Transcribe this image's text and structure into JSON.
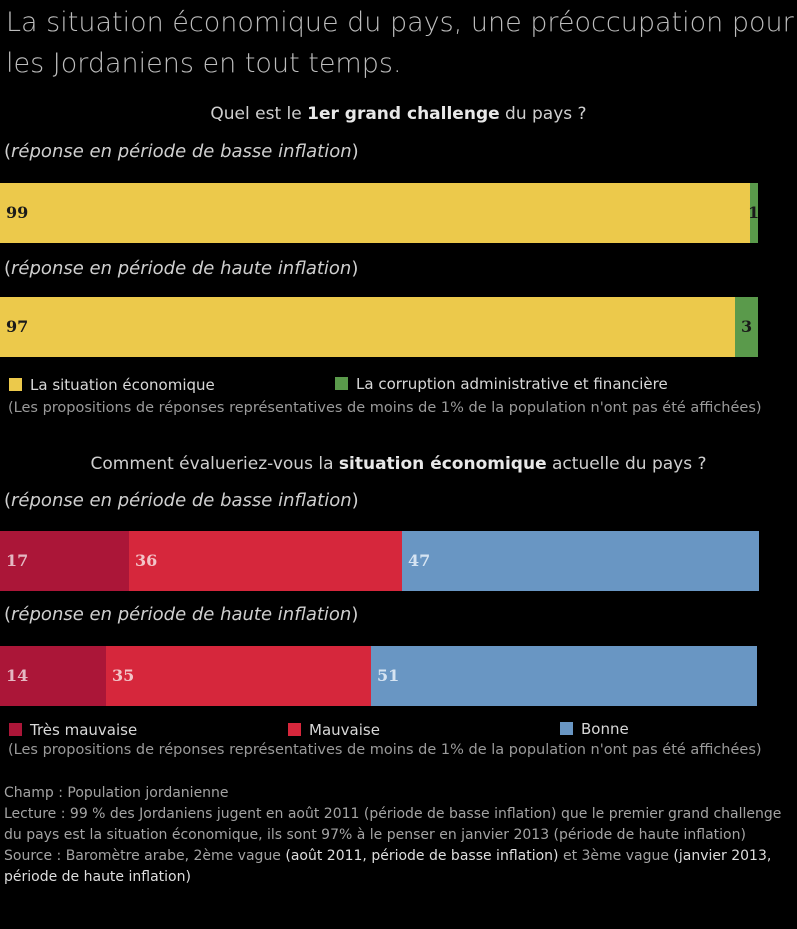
{
  "title": "La situation économique du pays, une préoccupation pour les Jordaniens en tout temps.",
  "colors": {
    "economique": "#ecc94b",
    "corruption": "#5a9a4b",
    "tres_mauvaise": "#ab1638",
    "mauvaise": "#d6273c",
    "bonne": "#6996c3"
  },
  "chart1": {
    "question_pre": "Quel est le ",
    "question_bold": "1er grand challenge",
    "question_post": " du pays ?",
    "period_low": "réponse en période de basse inflation",
    "period_high": "réponse en période de haute inflation",
    "legend": [
      "La situation économique",
      "La corruption administrative et financière"
    ],
    "note": "(Les propositions de réponses représentatives de moins de 1% de la population n'ont pas été affichées)"
  },
  "chart2": {
    "question_pre": "Comment évalueriez-vous la ",
    "question_bold": "situation économique",
    "question_post": " actuelle du pays ?",
    "period_low": "réponse en période de basse inflation",
    "period_high": "réponse en période de haute inflation",
    "legend": [
      "Très mauvaise",
      "Mauvaise",
      "Bonne"
    ],
    "note": "(Les propositions de réponses représentatives de moins de 1% de la population n'ont pas été affichées)"
  },
  "footer": {
    "champ": "Champ : Population jordanienne",
    "lecture": "Lecture :  99 % des Jordaniens jugent en août 2011 (période de basse inflation) que le premier grand challenge du pays est la situation économique, ils sont 97% à le penser en janvier 2013 (période de haute inflation)",
    "source_1": "Source : Baromètre arabe, 2ème vague ",
    "source_2": "(août 2011, période de basse inflation)",
    "source_3": " et 3ème vague ",
    "source_4": "(janvier 2013, période de haute inflation)"
  },
  "chart_data": [
    {
      "type": "bar",
      "orientation": "horizontal",
      "stacked": true,
      "categories": [
        "réponse en période de basse inflation",
        "réponse en période de haute inflation"
      ],
      "series": [
        {
          "name": "La situation économique",
          "values": [
            99,
            97
          ],
          "color": "#ecc94b"
        },
        {
          "name": "La corruption administrative et financière",
          "values": [
            1,
            3
          ],
          "color": "#5a9a4b"
        }
      ]
    },
    {
      "type": "bar",
      "orientation": "horizontal",
      "stacked": true,
      "categories": [
        "réponse en période de basse inflation",
        "réponse en période de haute inflation"
      ],
      "series": [
        {
          "name": "Très mauvaise",
          "values": [
            17,
            14
          ],
          "color": "#ab1638"
        },
        {
          "name": "Mauvaise",
          "values": [
            36,
            35
          ],
          "color": "#d6273c"
        },
        {
          "name": "Bonne",
          "values": [
            47,
            51
          ],
          "color": "#6996c3"
        }
      ]
    }
  ]
}
